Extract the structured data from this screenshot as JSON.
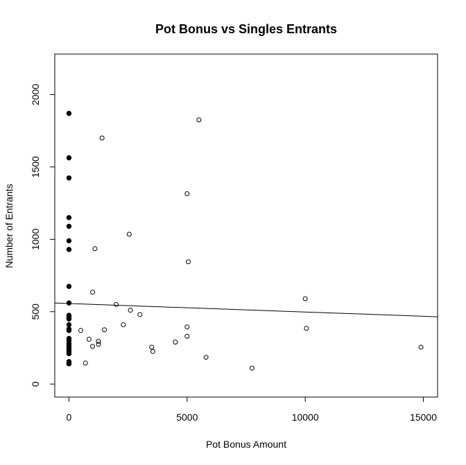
{
  "chart_data": {
    "type": "scatter",
    "title": "Pot Bonus vs Singles Entrants",
    "xlabel": "Pot Bonus Amount",
    "ylabel": "Number of Entrants",
    "xlim": [
      -600,
      15600
    ],
    "ylim": [
      -90,
      2280
    ],
    "x_ticks": [
      0,
      5000,
      10000,
      15000
    ],
    "y_ticks": [
      0,
      500,
      1000,
      1500,
      2000
    ],
    "x_tick_labels": [
      "0",
      "5000",
      "10000",
      "15000"
    ],
    "y_tick_labels": [
      "0",
      "500",
      "1000",
      "1500",
      "2000"
    ],
    "grid": false,
    "legend": "none",
    "series": [
      {
        "marker": "filled-circle",
        "x": [
          0,
          0,
          0,
          0,
          0,
          0,
          0,
          0,
          0,
          0,
          0,
          0,
          0,
          0,
          0,
          0,
          0,
          0,
          0,
          0,
          0,
          0,
          0,
          0,
          0,
          0,
          0,
          0
        ],
        "y": [
          1870,
          1563,
          1424,
          1150,
          1090,
          990,
          930,
          675,
          560,
          475,
          460,
          450,
          410,
          380,
          370,
          315,
          300,
          280,
          265,
          250,
          240,
          230,
          220,
          210,
          155,
          150,
          145,
          140
        ]
      },
      {
        "marker": "open-circle",
        "x": [
          5500,
          1400,
          5000,
          2550,
          1100,
          5050,
          1000,
          10000,
          2000,
          10050,
          3000,
          2600,
          2300,
          1500,
          5000,
          500,
          5000,
          850,
          1250,
          1250,
          4500,
          1000,
          3500,
          3550,
          5800,
          700,
          7750,
          14900
        ],
        "y": [
          1825,
          1700,
          1315,
          1035,
          935,
          845,
          635,
          590,
          550,
          385,
          480,
          510,
          410,
          375,
          395,
          370,
          330,
          310,
          295,
          275,
          290,
          260,
          255,
          225,
          185,
          145,
          110,
          255
        ]
      }
    ],
    "regression_line": {
      "x": [
        -600,
        15600
      ],
      "y": [
        560,
        465
      ]
    }
  }
}
